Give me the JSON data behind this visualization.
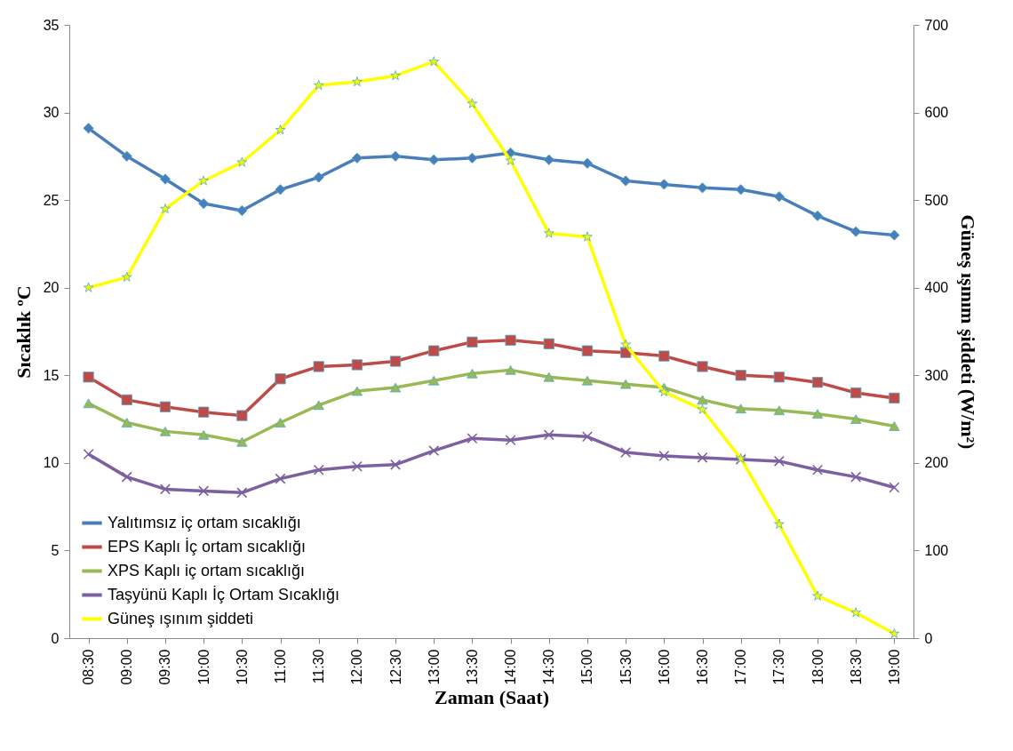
{
  "chart_data": {
    "type": "line",
    "xlabel": "Zaman (Saat)",
    "ylabel": "Sıcaklık ºC",
    "y2label": "Güneş ışınım şiddeti (W/m²)",
    "categories": [
      "08:30",
      "09:00",
      "09:30",
      "10:00",
      "10:30",
      "11:00",
      "11:30",
      "12:00",
      "12:30",
      "13:00",
      "13:30",
      "14:00",
      "14:30",
      "15:00",
      "15:30",
      "16:00",
      "16:30",
      "17:00",
      "17:30",
      "18:00",
      "18:30",
      "19:00"
    ],
    "series": [
      {
        "name": "Yalıtımsız iç ortam sıcaklığı",
        "color": "#4a7ebb",
        "marker": "diamond",
        "values": [
          29.1,
          27.5,
          26.2,
          24.8,
          24.4,
          25.6,
          26.3,
          27.4,
          27.5,
          27.3,
          27.4,
          27.7,
          27.3,
          27.1,
          26.1,
          25.9,
          25.7,
          25.6,
          25.2,
          24.1,
          23.2,
          23.0
        ]
      },
      {
        "name": "EPS Kaplı İç ortam sıcaklığı",
        "color": "#be4b48",
        "marker": "square",
        "values": [
          14.9,
          13.6,
          13.2,
          12.9,
          12.7,
          14.8,
          15.5,
          15.6,
          15.8,
          16.4,
          16.9,
          17.0,
          16.8,
          16.4,
          16.3,
          16.1,
          15.5,
          15.0,
          14.9,
          14.6,
          14.0,
          13.7
        ]
      },
      {
        "name": "XPS Kaplı iç ortam sıcaklığı",
        "color": "#98b954",
        "marker": "triangle",
        "values": [
          13.4,
          12.3,
          11.8,
          11.6,
          11.2,
          12.3,
          13.3,
          14.1,
          14.3,
          14.7,
          15.1,
          15.3,
          14.9,
          14.7,
          14.5,
          14.3,
          13.6,
          13.1,
          13.0,
          12.8,
          12.5,
          12.1
        ]
      },
      {
        "name": "Taşyünü Kaplı İç Ortam Sıcaklığı",
        "color": "#7d60a0",
        "marker": "cross",
        "values": [
          10.5,
          9.2,
          8.5,
          8.4,
          8.3,
          9.1,
          9.6,
          9.8,
          9.9,
          10.7,
          11.4,
          11.3,
          11.6,
          11.5,
          10.6,
          10.4,
          10.3,
          10.2,
          10.1,
          9.6,
          9.2,
          8.6
        ]
      },
      {
        "name": "Güneş ışınım şiddeti",
        "color": "#ffff00",
        "marker": "star",
        "axis": "y2",
        "values": [
          400,
          412,
          490,
          522,
          543,
          580,
          631,
          635,
          642,
          658,
          610,
          545,
          462,
          458,
          335,
          281,
          261,
          205,
          130,
          48,
          29,
          5
        ]
      }
    ],
    "ylim": [
      0,
      35
    ],
    "yticks": [
      0,
      5,
      10,
      15,
      20,
      25,
      30,
      35
    ],
    "y2lim": [
      0,
      700
    ],
    "y2ticks": [
      0,
      100,
      200,
      300,
      400,
      500,
      600,
      700
    ],
    "grid": false,
    "legend": "bottom left"
  }
}
